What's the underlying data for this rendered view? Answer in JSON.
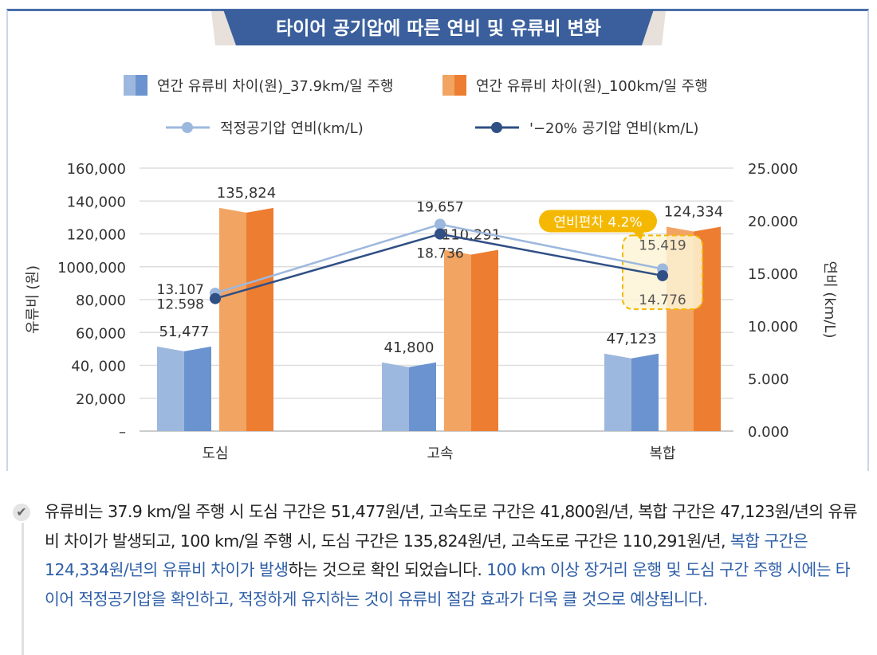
{
  "chart_data": {
    "type": "bar",
    "title": "타이어 공기압에 따른 연비 및 유류비 변화",
    "categories": [
      "도심",
      "고속",
      "복합"
    ],
    "series": [
      {
        "name": "연간 유류비 차이(원)_37.9km/일 주행",
        "type": "bar",
        "axis": "left",
        "values": [
          51477,
          41800,
          47123
        ],
        "labels": [
          "51,477",
          "41,800",
          "47,123"
        ],
        "color": "#6b93cf",
        "color_light": "#9db8de"
      },
      {
        "name": "연간 유류비 차이(원)_100km/일 주행",
        "type": "bar",
        "axis": "left",
        "values": [
          135824,
          110291,
          124334
        ],
        "labels": [
          "135,824",
          "110,291",
          "124,334"
        ],
        "color": "#ed7d31",
        "color_light": "#f2a462"
      },
      {
        "name": "적정공기압 연비(km/L)",
        "type": "line",
        "axis": "right",
        "values": [
          13.107,
          19.657,
          15.419
        ],
        "labels": [
          "13.107",
          "19.657",
          "15.419"
        ],
        "color": "#9db8de"
      },
      {
        "name": "'−20% 공기압 연비(km/L)",
        "type": "line",
        "axis": "right",
        "values": [
          12.598,
          18.736,
          14.776
        ],
        "labels": [
          "12.598",
          "18.736",
          "14.776"
        ],
        "color": "#2f4f85"
      }
    ],
    "ylabel": "유류비 (원)",
    "y2label": "연비 (km/L)",
    "ylim": [
      0,
      160000
    ],
    "y2lim": [
      0,
      25
    ],
    "yticks": [
      "–",
      "20,000",
      "40, 000",
      "60,000",
      "80,000",
      "1000,000",
      "120,000",
      "140,000",
      "160,000"
    ],
    "y2ticks": [
      "0.000",
      "5.000",
      "10.000",
      "15.000",
      "20.000",
      "25.000"
    ],
    "grid": true,
    "legend_position": "top",
    "annotation": {
      "label": "연비편차 4.2%",
      "category": "복합",
      "color": "#f5b800"
    },
    "title_color": "#3a5f9c"
  },
  "description": {
    "segments": [
      {
        "text": "유류비는 37.9 km/일 주행 시 도심 구간은 51,477원/년, 고속도로 구간은 41,800원/년, 복합 구간은 47,123원/년의 유류비 차이가 발생되고, 100 km/일 주행 시, 도심 구간은 135,824원/년, 고속도로 구간은 110,291원/년, ",
        "highlight": false
      },
      {
        "text": "복합 구간은 124,334원/년의 유류비 차이가 발생",
        "highlight": true
      },
      {
        "text": "하는 것으로 확인 되었습니다. ",
        "highlight": false
      },
      {
        "text": "100 km 이상 장거리 운행 및 도심 구간 주행 시에는 타이어 적정공기압을 확인하고, 적정하게 유지하는 것이 유류비 절감 효과가 더욱 클 것으로 예상됩니다.",
        "highlight": true
      }
    ],
    "icon": "check-icon",
    "highlight_color": "#2f5fa8"
  }
}
